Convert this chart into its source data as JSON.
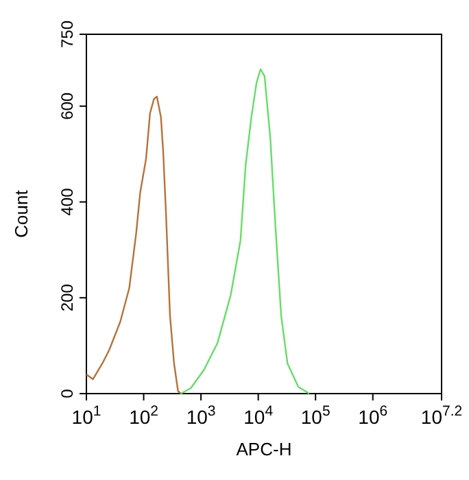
{
  "chart_data": {
    "type": "line",
    "xlabel": "APC-H",
    "ylabel": "Count",
    "log": "x",
    "xlim": [
      10,
      15848932
    ],
    "ylim": [
      0,
      750
    ],
    "xticks": [
      {
        "value": 10,
        "label": "10$^{1}$"
      },
      {
        "value": 100,
        "label": "10$^{2}$"
      },
      {
        "value": 1000,
        "label": "10$^{3}$"
      },
      {
        "value": 10000,
        "label": "10$^{4}$"
      },
      {
        "value": 100000,
        "label": "10$^{5}$"
      },
      {
        "value": 1000000,
        "label": "10$^{6}$"
      },
      {
        "value": 15848932,
        "label": "10$^{7.2}$"
      }
    ],
    "yticks": [
      0,
      200,
      400,
      600,
      750
    ],
    "grid": false,
    "marker": "none",
    "line_style": "solid",
    "series": [
      {
        "color": "#b5723a",
        "x": [
          10,
          13,
          19,
          25,
          39,
          56,
          74,
          87,
          110,
          129,
          151,
          170,
          200,
          219,
          245,
          288,
          339,
          398,
          447
        ],
        "values": [
          40,
          30,
          63,
          91,
          150,
          220,
          335,
          420,
          490,
          585,
          615,
          620,
          577,
          505,
          377,
          163,
          63,
          5,
          0
        ]
      },
      {
        "color": "#66dd66",
        "x": [
          447,
          661,
          1122,
          1950,
          3311,
          4898,
          6026,
          7586,
          9333,
          10965,
          12882,
          16218,
          19953,
          25119,
          32359,
          50119,
          77625
        ],
        "values": [
          0,
          11,
          49,
          106,
          206,
          320,
          477,
          577,
          649,
          677,
          663,
          534,
          349,
          163,
          63,
          14,
          0
        ]
      }
    ]
  }
}
